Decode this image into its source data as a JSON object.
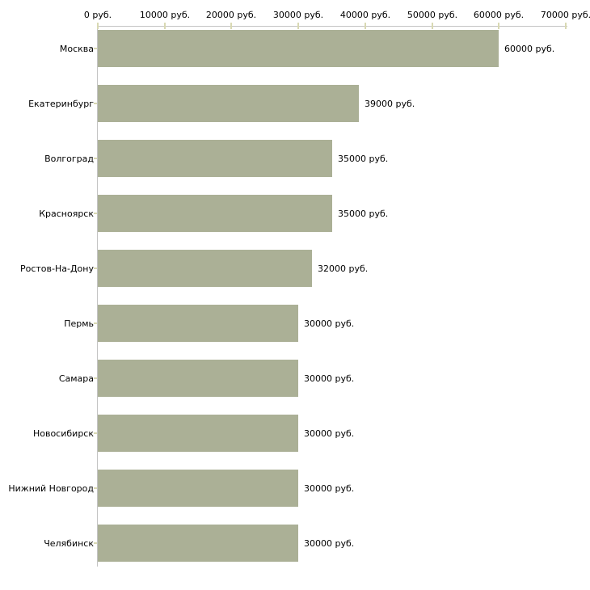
{
  "chart_data": {
    "type": "bar",
    "orientation": "horizontal",
    "title": "",
    "xlabel": "",
    "ylabel": "",
    "grid": false,
    "legend": null,
    "categories": [
      "Москва",
      "Екатеринбург",
      "Волгоград",
      "Красноярск",
      "Ростов-На-Дону",
      "Пермь",
      "Самара",
      "Новосибирск",
      "Нижний Новгород",
      "Челябинск"
    ],
    "values": [
      60000,
      39000,
      35000,
      35000,
      32000,
      30000,
      30000,
      30000,
      30000,
      30000
    ],
    "value_labels": [
      "60000 руб.",
      "39000 руб.",
      "35000 руб.",
      "35000 руб.",
      "32000 руб.",
      "30000 руб.",
      "30000 руб.",
      "30000 руб.",
      "30000 руб.",
      "30000 руб."
    ],
    "x_ticks": [
      0,
      10000,
      20000,
      30000,
      40000,
      50000,
      60000,
      70000
    ],
    "x_tick_labels": [
      "0 руб.",
      "10000 руб.",
      "20000 руб.",
      "30000 руб.",
      "40000 руб.",
      "50000 руб.",
      "60000 руб.",
      "70000 руб."
    ],
    "xlim": [
      0,
      70000
    ],
    "colors": {
      "bar": "#abb096",
      "axis_line": "#c4c4c4",
      "tick": "#d9d9b3",
      "text": "#000000",
      "background": "#ffffff"
    }
  }
}
